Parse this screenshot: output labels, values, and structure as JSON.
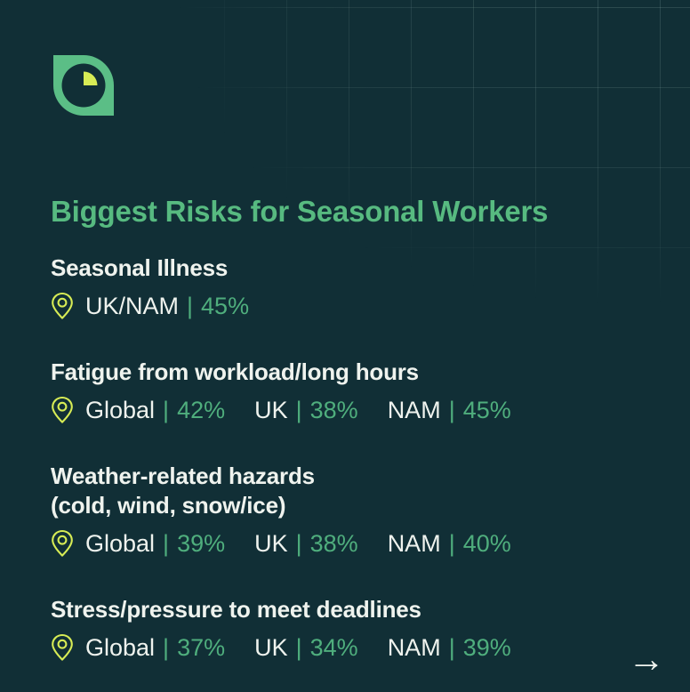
{
  "colors": {
    "background": "#112F36",
    "title_green": "#57BA80",
    "value_green": "#4FAE7D",
    "text_white": "#EFF3EE",
    "lime": "#D7EC55",
    "logo_green": "#5BBE86",
    "grid_line": "rgba(163,196,188,0.20)"
  },
  "logo": {
    "icon": "pie-leaf-logo"
  },
  "title": "Biggest Risks for Seasonal Workers",
  "sections": [
    {
      "heading_lines": [
        "Seasonal Illness"
      ],
      "stats": [
        {
          "label": "UK/NAM",
          "separator": "|",
          "value": "45%"
        }
      ]
    },
    {
      "heading_lines": [
        "Fatigue from workload/long hours"
      ],
      "stats": [
        {
          "label": "Global",
          "separator": "|",
          "value": "42%"
        },
        {
          "label": "UK",
          "separator": "|",
          "value": "38%"
        },
        {
          "label": "NAM",
          "separator": "|",
          "value": "45%"
        }
      ]
    },
    {
      "heading_lines": [
        "Weather-related hazards",
        "(cold, wind, snow/ice)"
      ],
      "stats": [
        {
          "label": "Global",
          "separator": "|",
          "value": "39%"
        },
        {
          "label": "UK",
          "separator": "|",
          "value": "38%"
        },
        {
          "label": "NAM",
          "separator": "|",
          "value": "40%"
        }
      ]
    },
    {
      "heading_lines": [
        "Stress/pressure to meet deadlines"
      ],
      "stats": [
        {
          "label": "Global",
          "separator": "|",
          "value": "37%"
        },
        {
          "label": "UK",
          "separator": "|",
          "value": "34%"
        },
        {
          "label": "NAM",
          "separator": "|",
          "value": "39%"
        }
      ]
    }
  ],
  "footer": {
    "next_arrow": "→"
  },
  "chart_data": {
    "type": "table",
    "title": "Biggest Risks for Seasonal Workers",
    "unit": "%",
    "columns": [
      "Risk",
      "Global",
      "UK",
      "NAM",
      "UK/NAM"
    ],
    "rows": [
      {
        "risk": "Seasonal Illness",
        "global": null,
        "uk": null,
        "nam": null,
        "uk_nam": 45
      },
      {
        "risk": "Fatigue from workload/long hours",
        "global": 42,
        "uk": 38,
        "nam": 45,
        "uk_nam": null
      },
      {
        "risk": "Weather-related hazards (cold, wind, snow/ice)",
        "global": 39,
        "uk": 38,
        "nam": 40,
        "uk_nam": null
      },
      {
        "risk": "Stress/pressure to meet deadlines",
        "global": 37,
        "uk": 34,
        "nam": 39,
        "uk_nam": null
      }
    ]
  }
}
